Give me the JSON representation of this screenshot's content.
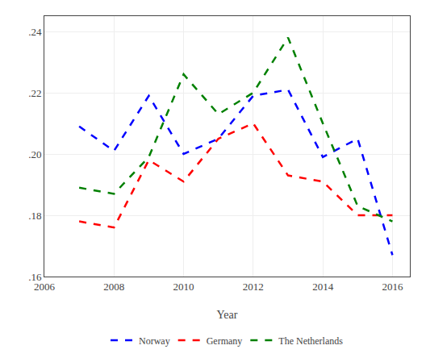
{
  "chart_data": {
    "type": "line",
    "x_label": "Year",
    "x": [
      2007,
      2008,
      2009,
      2010,
      2011,
      2012,
      2013,
      2014,
      2015,
      2016
    ],
    "series": [
      {
        "name": "Norway",
        "color": "#0000ff",
        "line_style": "dashed",
        "values": [
          0.209,
          0.201,
          0.219,
          0.2,
          0.205,
          0.219,
          0.221,
          0.199,
          0.205,
          0.167
        ]
      },
      {
        "name": "Germany",
        "color": "#ff0000",
        "line_style": "dashed",
        "values": [
          0.178,
          0.176,
          0.198,
          0.191,
          0.205,
          0.21,
          0.193,
          0.191,
          0.18,
          0.18
        ]
      },
      {
        "name": "The Netherlands",
        "color": "#008000",
        "line_style": "dashed",
        "values": [
          0.189,
          0.187,
          0.199,
          0.226,
          0.213,
          0.22,
          0.238,
          0.21,
          0.183,
          0.178
        ]
      }
    ],
    "xlim": [
      2006,
      2016.5
    ],
    "xticks": [
      2006,
      2008,
      2010,
      2012,
      2014,
      2016
    ],
    "ylim": [
      0.16,
      0.245
    ],
    "yticks": [
      {
        "value": 0.16,
        "label": ".16"
      },
      {
        "value": 0.18,
        "label": ".18"
      },
      {
        "value": 0.2,
        "label": ".20"
      },
      {
        "value": 0.22,
        "label": ".22"
      },
      {
        "value": 0.24,
        "label": ".24"
      }
    ],
    "grid": true,
    "legend": "bottom"
  }
}
